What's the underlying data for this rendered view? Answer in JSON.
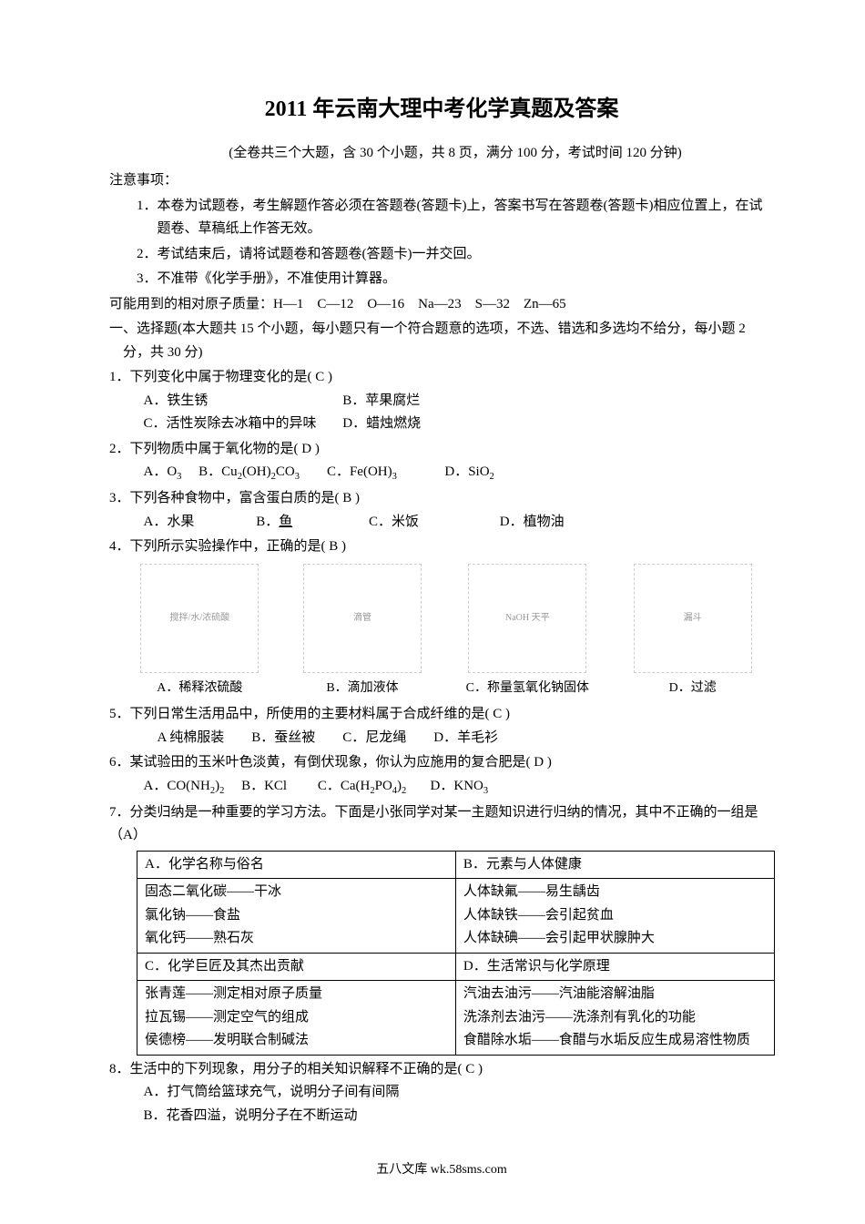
{
  "title": "2011 年云南大理中考化学真题及答案",
  "subtitle": "(全卷共三个大题，含 30 个小题，共 8 页，满分 100 分，考试时间 120 分钟)",
  "notice_header": "注意事项：",
  "notices": [
    "1．本卷为试题卷，考生解题作答必须在答题卷(答题卡)上，答案书写在答题卷(答题卡)相应位置上，在试题卷、草稿纸上作答无效。",
    "2．考试结束后，请将试题卷和答题卷(答题卡)一并交回。",
    "3．不准带《化学手册》，不准使用计算器。"
  ],
  "atomic_mass": "可能用到的相对原子质量：H—1　C—12　O—16　Na—23　S—32　Zn—65",
  "section1": "一、选择题(本大题共 15 个小题，每小题只有一个符合题意的选项，不选、错选和多选均不给分，每小题 2 分，共 30 分)",
  "q1": {
    "stem": "1．下列变化中属于物理变化的是( C )",
    "a": "A．铁生锈",
    "b": "B．苹果腐烂",
    "c": "C．活性炭除去冰箱中的异味",
    "d": "D．蜡烛燃烧"
  },
  "q2": {
    "stem": "2．下列物质中属于氧化物的是( D )",
    "a": "A．O",
    "a_sub": "3",
    "b": "B．Cu",
    "b_sub1": "2",
    "b_mid": "(OH)",
    "b_sub2": "2",
    "b_end": "CO",
    "b_sub3": "3",
    "c": "C．Fe(OH)",
    "c_sub": "3",
    "d": "D．SiO",
    "d_sub": "2"
  },
  "q3": {
    "stem": "3．下列各种食物中，富含蛋白质的是( B )",
    "a": "A．水果",
    "b_pre": "B．",
    "b": "鱼",
    "c": "C．米饭",
    "d": "D．植物油"
  },
  "q4": {
    "stem": "4．下列所示实验操作中，正确的是( B )",
    "img_a": "搅拌/水/浓硫酸",
    "img_b": "滴管",
    "img_c": "NaOH 天平",
    "img_d": "漏斗",
    "cap_a": "A．稀释浓硫酸",
    "cap_b": "B．滴加液体",
    "cap_c": "C．称量氢氧化钠固体",
    "cap_d": "D．过滤"
  },
  "q5": {
    "stem": "5．下列日常生活用品中，所使用的主要材料属于合成纤维的是( C )",
    "opts": "　A 纯棉服装　　B．蚕丝被　　C．尼龙绳　　D．羊毛衫"
  },
  "q6": {
    "stem": "6．某试验田的玉米叶色淡黄，有倒伏现象，你认为应施用的复合肥是( D )",
    "a": "A．CO(NH",
    "a_sub1": "2",
    "a_end": ")",
    "a_sub2": "2",
    "b": "B．KCl",
    "c": "C．Ca(H",
    "c_sub1": "2",
    "c_mid": "PO",
    "c_sub2": "4",
    "c_end": ")",
    "c_sub3": "2",
    "d": "D．KNO",
    "d_sub": "3"
  },
  "q7": {
    "stem": "7．分类归纳是一种重要的学习方法。下面是小张同学对某一主题知识进行归纳的情况，其中不正确的一组是（A）",
    "table": {
      "r1c1": "A．化学名称与俗名",
      "r1c2": "B．元素与人体健康",
      "r2c1": "固态二氧化碳——干冰\n氯化钠——食盐\n氧化钙——熟石灰",
      "r2c2": "人体缺氟——易生龋齿\n人体缺铁——会引起贫血\n人体缺碘——会引起甲状腺肿大",
      "r3c1": "C．化学巨匠及其杰出贡献",
      "r3c2": "D．生活常识与化学原理",
      "r4c1": "张青莲——测定相对原子质量\n拉瓦锡——测定空气的组成\n侯德榜——发明联合制碱法",
      "r4c2": "汽油去油污——汽油能溶解油脂\n洗涤剂去油污——洗涤剂有乳化的功能\n食醋除水垢——食醋与水垢反应生成易溶性物质"
    }
  },
  "q8": {
    "stem": "8．生活中的下列现象，用分子的相关知识解释不正确的是( C )",
    "a": "A．打气筒给篮球充气，说明分子间有间隔",
    "b": "B．花香四溢，说明分子在不断运动"
  },
  "footer": "五八文库 wk.58sms.com"
}
